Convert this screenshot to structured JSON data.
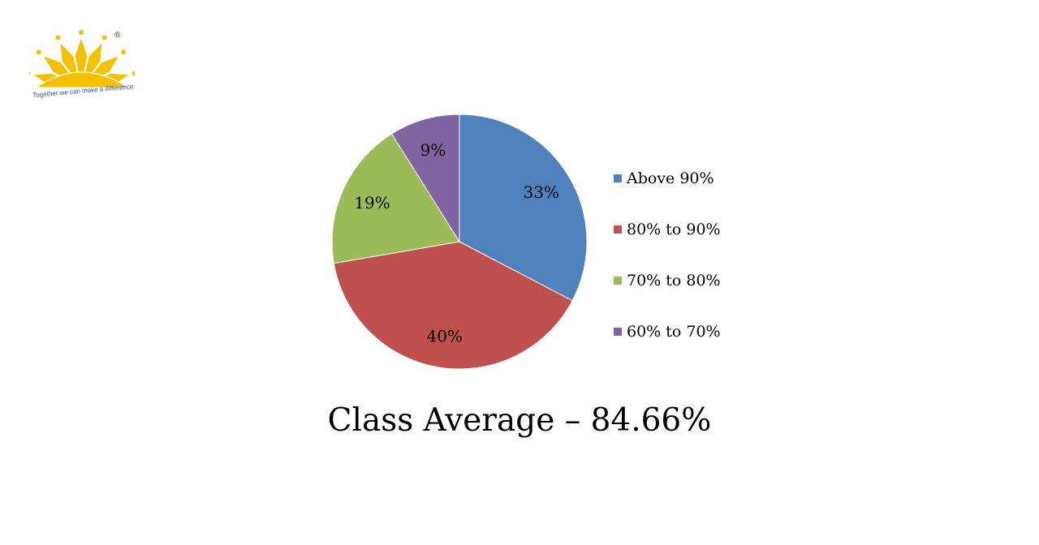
{
  "logo": {
    "tagline": "Together we can make a difference",
    "registered_mark": "®",
    "colors": {
      "primary": "#f5c000",
      "tagline": "#1f5aa6"
    }
  },
  "chart_data": {
    "type": "pie",
    "title": "",
    "categories": [
      "Above 90%",
      "80% to 90%",
      "70% to 80%",
      "60% to 70%"
    ],
    "values": [
      33,
      40,
      19,
      9
    ],
    "labels": [
      "33%",
      "40%",
      "19%",
      "9%"
    ],
    "colors": [
      "#4f81bd",
      "#c0504d",
      "#9bbb59",
      "#8064a2"
    ],
    "legend": "right"
  },
  "caption": "Class Average – 84.66%"
}
